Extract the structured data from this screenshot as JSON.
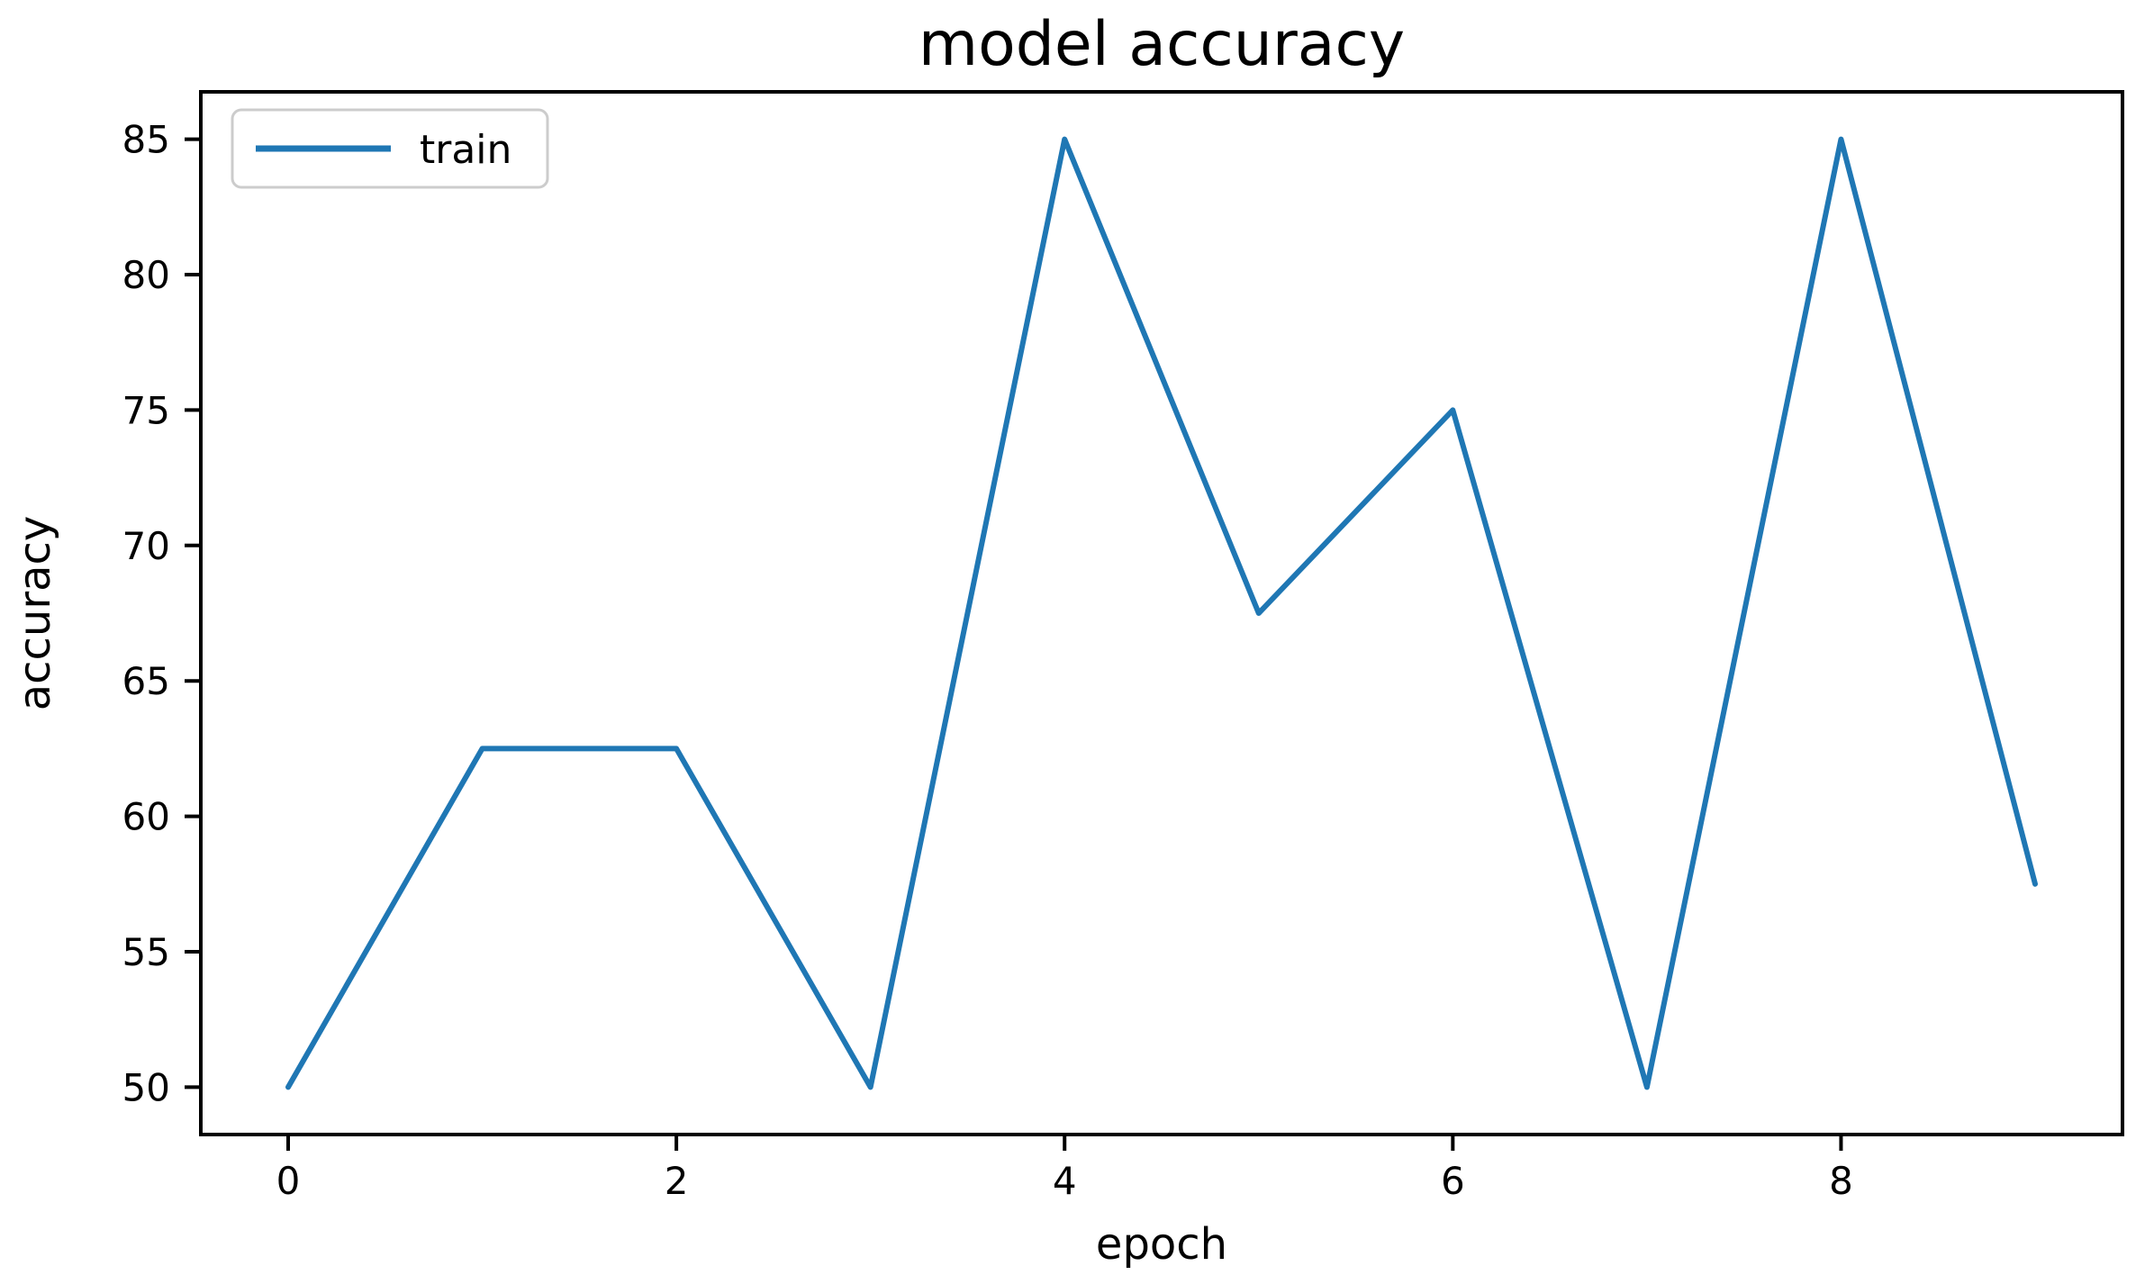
{
  "chart_data": {
    "type": "line",
    "title": "model accuracy",
    "xlabel": "epoch",
    "ylabel": "accuracy",
    "x": [
      0,
      1,
      2,
      3,
      4,
      5,
      6,
      7,
      8,
      9
    ],
    "series": [
      {
        "name": "train",
        "color": "#1f77b4",
        "values": [
          50,
          62.5,
          62.5,
          50,
          85,
          67.5,
          75,
          50,
          85,
          57.5
        ]
      }
    ],
    "x_ticks": [
      0,
      2,
      4,
      6,
      8
    ],
    "y_ticks": [
      50,
      55,
      60,
      65,
      70,
      75,
      80,
      85
    ],
    "xlim": [
      -0.45,
      9.45
    ],
    "ylim": [
      48.25,
      86.75
    ],
    "grid": false,
    "legend_position": "upper left",
    "colors": {
      "spine": "#000000",
      "text": "#000000",
      "legend_border": "#cccccc",
      "background": "#ffffff"
    }
  }
}
